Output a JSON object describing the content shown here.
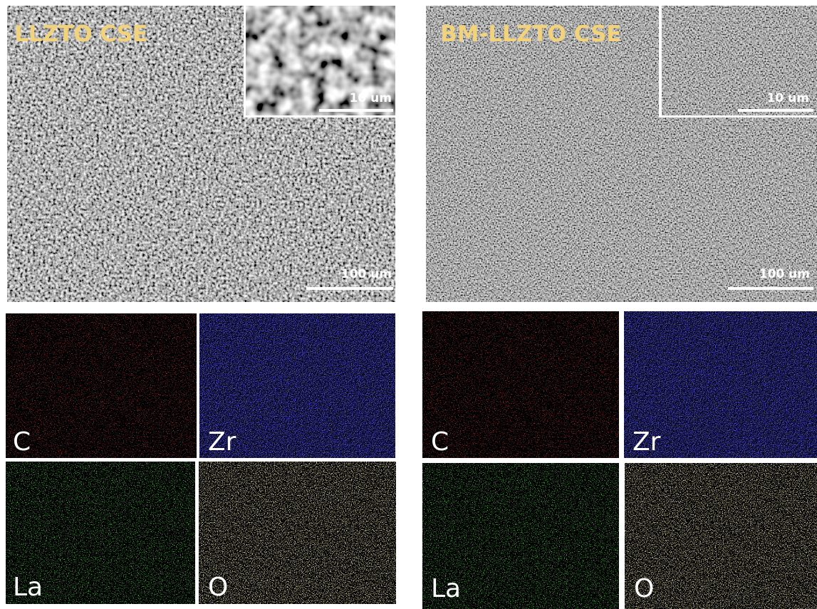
{
  "panels": [
    {
      "title": "LLZTO CSE",
      "inset_scale": "10 um",
      "scale": "100 um",
      "maps": [
        "C",
        "Zr",
        "La",
        "O"
      ]
    },
    {
      "title": "BM-LLZTO CSE",
      "inset_scale": "10 um",
      "scale": "100 um",
      "maps": [
        "C",
        "Zr",
        "La",
        "O"
      ]
    }
  ]
}
